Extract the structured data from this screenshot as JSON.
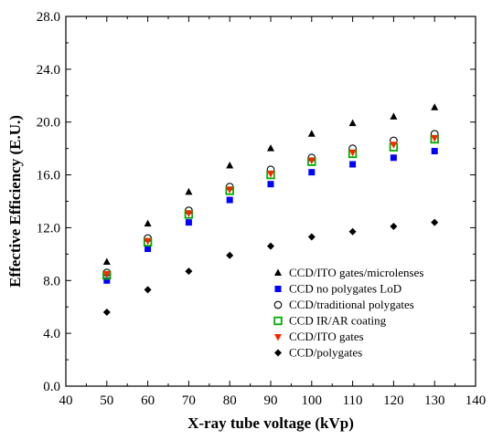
{
  "chart_data": {
    "type": "scatter",
    "title": "",
    "xlabel": "X-ray tube voltage (kVp)",
    "ylabel": "Effective Efficiency (E.U.)",
    "xlim": [
      40,
      140
    ],
    "ylim": [
      0,
      28
    ],
    "xticks": [
      "40",
      "50",
      "60",
      "70",
      "80",
      "90",
      "100",
      "110",
      "120",
      "130",
      "140"
    ],
    "yticks": [
      "0.0",
      "4.0",
      "8.0",
      "12.0",
      "16.0",
      "20.0",
      "24.0",
      "28.0"
    ],
    "grid": false,
    "legend_position": "bottom-right",
    "x": [
      50,
      60,
      70,
      80,
      90,
      100,
      110,
      120,
      130
    ],
    "series": [
      {
        "name": "CCD/ITO gates/microlenses",
        "marker": "triangle-up",
        "color": "#000000",
        "values": [
          9.4,
          12.3,
          14.7,
          16.7,
          18.0,
          19.1,
          19.9,
          20.4,
          21.1
        ]
      },
      {
        "name": "CCD no polygates LoD",
        "marker": "square-filled",
        "color": "#0000ff",
        "values": [
          8.0,
          10.4,
          12.4,
          14.1,
          15.3,
          16.2,
          16.8,
          17.3,
          17.8
        ]
      },
      {
        "name": "CCD/traditional polygates",
        "marker": "circle-open",
        "color": "#000000",
        "values": [
          8.6,
          11.2,
          13.3,
          15.1,
          16.4,
          17.3,
          18.0,
          18.6,
          19.1
        ]
      },
      {
        "name": "CCD IR/AR coating",
        "marker": "square-open",
        "color": "#00aa00",
        "values": [
          8.4,
          10.9,
          13.0,
          14.8,
          16.0,
          17.0,
          17.6,
          18.1,
          18.7
        ]
      },
      {
        "name": "CCD/ITO gates",
        "marker": "triangle-down",
        "color": "#ff2200",
        "values": [
          8.5,
          11.0,
          13.1,
          14.9,
          16.1,
          17.1,
          17.7,
          18.3,
          18.8
        ]
      },
      {
        "name": "CCD/polygates",
        "marker": "diamond",
        "color": "#000000",
        "values": [
          5.6,
          7.3,
          8.7,
          9.9,
          10.6,
          11.3,
          11.7,
          12.1,
          12.4
        ]
      }
    ]
  }
}
